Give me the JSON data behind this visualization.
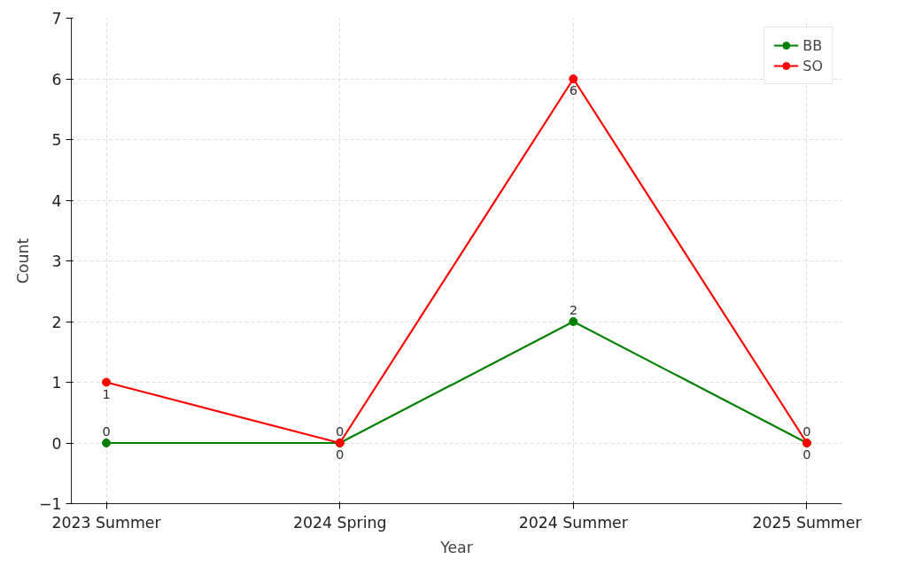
{
  "chart_data": {
    "type": "line",
    "xlabel": "Year",
    "ylabel": "Count",
    "categories": [
      "2023 Summer",
      "2024 Spring",
      "2024 Summer",
      "2025 Summer"
    ],
    "series": [
      {
        "name": "BB",
        "color": "#008000",
        "values": [
          0,
          0,
          2,
          0
        ]
      },
      {
        "name": "SO",
        "color": "#ff0000",
        "values": [
          1,
          0,
          6,
          0
        ]
      }
    ],
    "ylim": [
      -1,
      7
    ],
    "yticks": [
      {
        "value": -1,
        "label": "−1"
      },
      0,
      1,
      2,
      3,
      4,
      5,
      6,
      7
    ],
    "grid": true,
    "legend": "top right",
    "marker": "circle",
    "line_style": "solid",
    "data_labels": true
  }
}
